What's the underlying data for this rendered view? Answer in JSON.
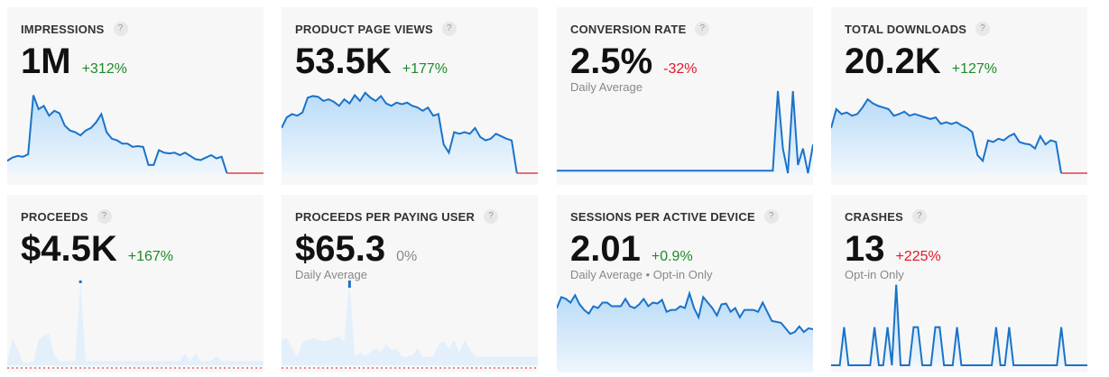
{
  "cards": [
    {
      "title": "IMPRESSIONS",
      "value": "1M",
      "change": "+312%",
      "change_color": "#1e8a2a",
      "sub": ""
    },
    {
      "title": "PRODUCT PAGE VIEWS",
      "value": "53.5K",
      "change": "+177%",
      "change_color": "#1e8a2a",
      "sub": ""
    },
    {
      "title": "CONVERSION RATE",
      "value": "2.5%",
      "change": "-32%",
      "change_color": "#e0182d",
      "sub": "Daily Average"
    },
    {
      "title": "TOTAL DOWNLOADS",
      "value": "20.2K",
      "change": "+127%",
      "change_color": "#1e8a2a",
      "sub": ""
    },
    {
      "title": "PROCEEDS",
      "value": "$4.5K",
      "change": "+167%",
      "change_color": "#1e8a2a",
      "sub": ""
    },
    {
      "title": "PROCEEDS PER PAYING USER",
      "value": "$65.3",
      "change": "0%",
      "change_color": "#888888",
      "sub": "Daily Average"
    },
    {
      "title": "SESSIONS PER ACTIVE DEVICE",
      "value": "2.01",
      "change": "+0.9%",
      "change_color": "#1e8a2a",
      "sub": "Daily Average • Opt-in Only"
    },
    {
      "title": "CRASHES",
      "value": "13",
      "change": "+225%",
      "change_color": "#e0182d",
      "sub": "Opt-in Only"
    }
  ],
  "help_label": "?",
  "chart_data": [
    {
      "type": "area",
      "values": [
        15,
        19,
        21,
        20,
        23,
        95,
        78,
        82,
        70,
        76,
        73,
        58,
        52,
        50,
        46,
        52,
        55,
        62,
        72,
        50,
        42,
        40,
        36,
        36,
        32,
        33,
        32,
        10,
        10,
        28,
        25,
        24,
        25,
        22,
        25,
        21,
        17,
        16,
        19,
        22,
        18,
        20,
        0,
        0,
        0,
        0,
        0,
        0,
        0,
        0
      ],
      "zero_tail_from": 42
    },
    {
      "type": "area",
      "values": [
        55,
        68,
        72,
        70,
        74,
        92,
        94,
        93,
        88,
        90,
        87,
        82,
        90,
        85,
        95,
        88,
        98,
        92,
        88,
        94,
        85,
        82,
        86,
        84,
        86,
        82,
        80,
        76,
        80,
        70,
        72,
        35,
        25,
        50,
        48,
        50,
        48,
        55,
        44,
        40,
        42,
        48,
        45,
        42,
        40,
        0,
        0,
        0,
        0,
        0
      ],
      "zero_tail_from": 45
    },
    {
      "type": "area",
      "values": [
        3,
        3,
        3,
        3,
        3,
        3,
        3,
        3,
        3,
        3,
        3,
        3,
        3,
        3,
        3,
        3,
        3,
        3,
        3,
        3,
        3,
        3,
        3,
        3,
        3,
        3,
        3,
        3,
        3,
        3,
        3,
        3,
        3,
        3,
        3,
        3,
        3,
        3,
        3,
        3,
        3,
        3,
        3,
        3,
        100,
        30,
        0,
        100,
        10,
        30,
        0,
        35
      ],
      "zero_tail_from": -1
    },
    {
      "type": "area",
      "values": [
        55,
        78,
        72,
        74,
        70,
        72,
        80,
        90,
        85,
        82,
        80,
        78,
        70,
        72,
        75,
        70,
        72,
        70,
        68,
        66,
        68,
        60,
        62,
        60,
        62,
        58,
        55,
        50,
        22,
        15,
        40,
        38,
        42,
        40,
        45,
        48,
        38,
        36,
        35,
        30,
        45,
        35,
        40,
        38,
        0,
        0,
        0,
        0,
        0,
        0
      ],
      "zero_tail_from": 44
    },
    {
      "type": "area",
      "values": [
        5,
        32,
        20,
        3,
        3,
        3,
        30,
        35,
        38,
        12,
        5,
        5,
        5,
        5,
        100,
        5,
        5,
        5,
        5,
        5,
        5,
        5,
        5,
        5,
        5,
        5,
        5,
        5,
        5,
        5,
        5,
        5,
        5,
        5,
        14,
        5,
        14,
        5,
        5,
        5,
        11,
        5,
        5,
        5,
        5,
        5,
        5,
        5,
        5,
        5
      ],
      "zero_tail_from": -1,
      "baseline_red": true
    },
    {
      "type": "area",
      "values": [
        30,
        32,
        20,
        10,
        28,
        30,
        32,
        30,
        28,
        30,
        32,
        34,
        28,
        100,
        10,
        15,
        10,
        16,
        20,
        16,
        25,
        18,
        20,
        10,
        10,
        12,
        20,
        10,
        10,
        10,
        24,
        28,
        20,
        30,
        15,
        30,
        20,
        10,
        10,
        10,
        10,
        10,
        10,
        10,
        10,
        10,
        10,
        10,
        10,
        10
      ],
      "zero_tail_from": -1,
      "baseline_red": true
    },
    {
      "type": "area",
      "values": [
        70,
        82,
        80,
        76,
        84,
        74,
        68,
        64,
        72,
        70,
        76,
        76,
        72,
        72,
        72,
        80,
        72,
        70,
        74,
        80,
        72,
        76,
        75,
        79,
        66,
        68,
        68,
        72,
        70,
        86,
        70,
        60,
        82,
        76,
        70,
        62,
        74,
        75,
        66,
        70,
        60,
        68,
        68,
        68,
        66,
        76,
        66,
        56,
        55,
        54,
        48,
        42,
        44,
        50,
        44,
        48,
        47
      ],
      "zero_tail_from": -1
    },
    {
      "type": "line",
      "values": [
        0,
        0,
        0,
        45,
        0,
        0,
        0,
        0,
        0,
        0,
        45,
        0,
        0,
        45,
        0,
        95,
        0,
        0,
        0,
        45,
        45,
        0,
        0,
        0,
        45,
        45,
        0,
        0,
        0,
        45,
        0,
        0,
        0,
        0,
        0,
        0,
        0,
        0,
        45,
        0,
        0,
        45,
        0,
        0,
        0,
        0,
        0,
        0,
        0,
        0,
        0,
        0,
        0,
        45,
        0,
        0,
        0,
        0,
        0,
        0
      ],
      "zero_tail_from": -1
    }
  ]
}
